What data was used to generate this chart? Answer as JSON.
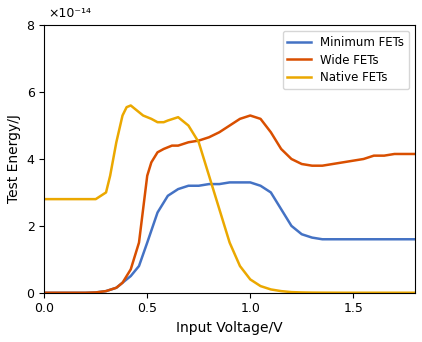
{
  "title": "",
  "xlabel": "Input Voltage/V",
  "ylabel": "Test Energy/J",
  "xlim": [
    0,
    1.8
  ],
  "ylim": [
    0,
    8e-14
  ],
  "yticks": [
    0,
    2e-14,
    4e-14,
    6e-14,
    8e-14
  ],
  "ytick_labels": [
    "0",
    "2",
    "4",
    "6",
    "8"
  ],
  "exponent_label": "×10⁻¹⁴",
  "legend_labels": [
    "Minimum FETs",
    "Wide FETs",
    "Native FETs"
  ],
  "colors": [
    "#4472C4",
    "#D94F00",
    "#EBA800"
  ],
  "line_width": 1.8,
  "min_fets_x": [
    0.0,
    0.05,
    0.1,
    0.15,
    0.2,
    0.25,
    0.3,
    0.35,
    0.38,
    0.42,
    0.46,
    0.5,
    0.55,
    0.6,
    0.65,
    0.7,
    0.75,
    0.8,
    0.85,
    0.9,
    0.95,
    1.0,
    1.05,
    1.1,
    1.15,
    1.2,
    1.25,
    1.3,
    1.35,
    1.4,
    1.45,
    1.5,
    1.55,
    1.6,
    1.65,
    1.7,
    1.75,
    1.8
  ],
  "min_fets_y": [
    0.0,
    0.0,
    0.0,
    0.0,
    0.0,
    1e-16,
    5e-16,
    1.5e-15,
    3e-15,
    5e-15,
    8e-15,
    1.5e-14,
    2.4e-14,
    2.9e-14,
    3.1e-14,
    3.2e-14,
    3.2e-14,
    3.25e-14,
    3.25e-14,
    3.3e-14,
    3.3e-14,
    3.3e-14,
    3.2e-14,
    3e-14,
    2.5e-14,
    2e-14,
    1.75e-14,
    1.65e-14,
    1.6e-14,
    1.6e-14,
    1.6e-14,
    1.6e-14,
    1.6e-14,
    1.6e-14,
    1.6e-14,
    1.6e-14,
    1.6e-14,
    1.6e-14
  ],
  "wide_fets_x": [
    0.0,
    0.05,
    0.1,
    0.15,
    0.2,
    0.25,
    0.3,
    0.35,
    0.38,
    0.42,
    0.46,
    0.5,
    0.52,
    0.55,
    0.58,
    0.62,
    0.65,
    0.7,
    0.75,
    0.8,
    0.85,
    0.9,
    0.95,
    1.0,
    1.05,
    1.1,
    1.15,
    1.2,
    1.25,
    1.3,
    1.35,
    1.4,
    1.45,
    1.5,
    1.55,
    1.6,
    1.65,
    1.7,
    1.75,
    1.8
  ],
  "wide_fets_y": [
    0.0,
    0.0,
    0.0,
    0.0,
    0.0,
    1e-16,
    5e-16,
    1.5e-15,
    3e-15,
    7e-15,
    1.5e-14,
    3.5e-14,
    3.9e-14,
    4.2e-14,
    4.3e-14,
    4.4e-14,
    4.4e-14,
    4.5e-14,
    4.55e-14,
    4.65e-14,
    4.8e-14,
    5e-14,
    5.2e-14,
    5.3e-14,
    5.2e-14,
    4.8e-14,
    4.3e-14,
    4e-14,
    3.85e-14,
    3.8e-14,
    3.8e-14,
    3.85e-14,
    3.9e-14,
    3.95e-14,
    4e-14,
    4.1e-14,
    4.1e-14,
    4.15e-14,
    4.15e-14,
    4.15e-14
  ],
  "native_fets_x": [
    0.0,
    0.05,
    0.1,
    0.15,
    0.2,
    0.25,
    0.3,
    0.32,
    0.35,
    0.38,
    0.4,
    0.42,
    0.45,
    0.48,
    0.5,
    0.52,
    0.55,
    0.58,
    0.6,
    0.65,
    0.7,
    0.75,
    0.8,
    0.85,
    0.9,
    0.95,
    1.0,
    1.05,
    1.1,
    1.15,
    1.2,
    1.25,
    1.3,
    1.35,
    1.4,
    1.45,
    1.5,
    1.55,
    1.6,
    1.65,
    1.7,
    1.75,
    1.8
  ],
  "native_fets_y": [
    2.8e-14,
    2.8e-14,
    2.8e-14,
    2.8e-14,
    2.8e-14,
    2.8e-14,
    3e-14,
    3.5e-14,
    4.5e-14,
    5.3e-14,
    5.55e-14,
    5.6e-14,
    5.45e-14,
    5.3e-14,
    5.25e-14,
    5.2e-14,
    5.1e-14,
    5.1e-14,
    5.15e-14,
    5.25e-14,
    5e-14,
    4.5e-14,
    3.5e-14,
    2.5e-14,
    1.5e-14,
    8e-15,
    4e-15,
    2e-15,
    1e-15,
    5e-16,
    2e-16,
    1e-16,
    5e-17,
    3e-17,
    2e-17,
    1e-17,
    1e-17,
    1e-17,
    1e-17,
    1e-17,
    1e-17,
    1e-17,
    1e-17
  ]
}
